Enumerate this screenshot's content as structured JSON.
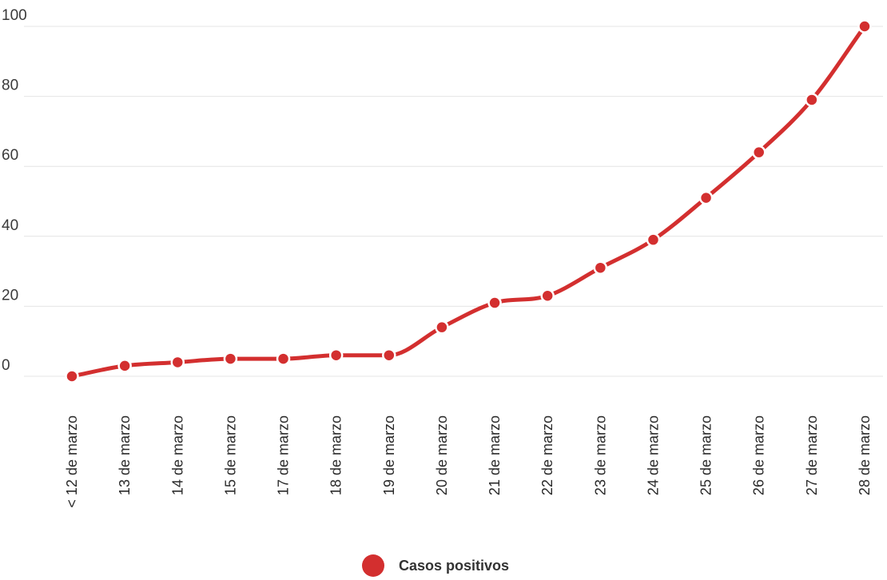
{
  "colors": {
    "series": "#d32f2f",
    "gridline": "#e4e4e4",
    "text": "#333333"
  },
  "chart_data": {
    "type": "line",
    "title": "",
    "xlabel": "",
    "ylabel": "",
    "categories": [
      "< 12 de marzo",
      "13 de marzo",
      "14 de marzo",
      "15 de marzo",
      "17 de marzo",
      "18 de marzo",
      "19 de marzo",
      "20 de marzo",
      "21 de marzo",
      "22 de marzo",
      "23 de marzo",
      "24 de marzo",
      "25 de marzo",
      "26 de marzo",
      "27 de marzo",
      "28 de marzo"
    ],
    "series": [
      {
        "name": "Casos positivos",
        "values": [
          0,
          3,
          4,
          5,
          5,
          6,
          6,
          14,
          21,
          23,
          31,
          39,
          51,
          64,
          79,
          100
        ]
      }
    ],
    "yticks": [
      "0",
      "20",
      "40",
      "60",
      "80",
      "100"
    ],
    "ylim": [
      0,
      100
    ],
    "grid": true,
    "smooth": true,
    "legend_position": "bottom-center"
  }
}
